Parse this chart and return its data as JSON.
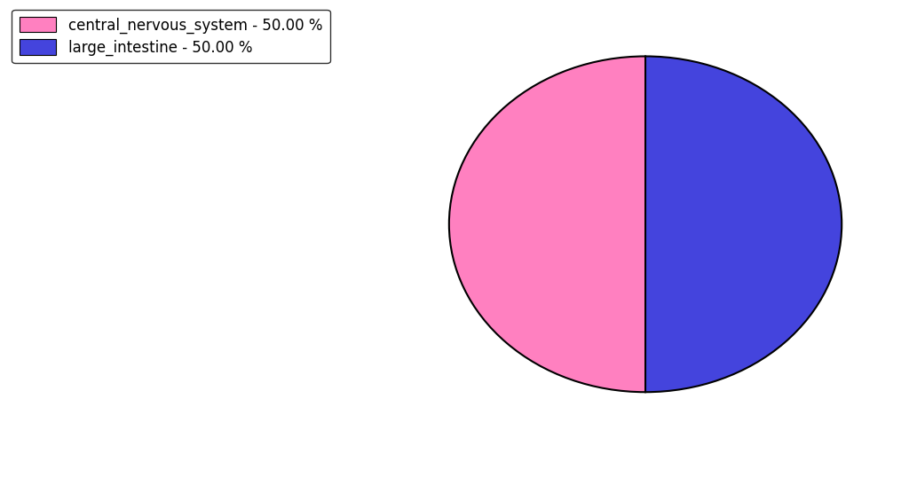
{
  "labels": [
    "central_nervous_system",
    "large_intestine"
  ],
  "values": [
    50.0,
    50.0
  ],
  "colors": [
    "#FF80C0",
    "#4444DD"
  ],
  "legend_labels": [
    "central_nervous_system - 50.00 %",
    "large_intestine - 50.00 %"
  ],
  "background_color": "#ffffff",
  "startangle": 90,
  "legend_fontsize": 12,
  "edge_color": "black",
  "edge_linewidth": 1.5
}
